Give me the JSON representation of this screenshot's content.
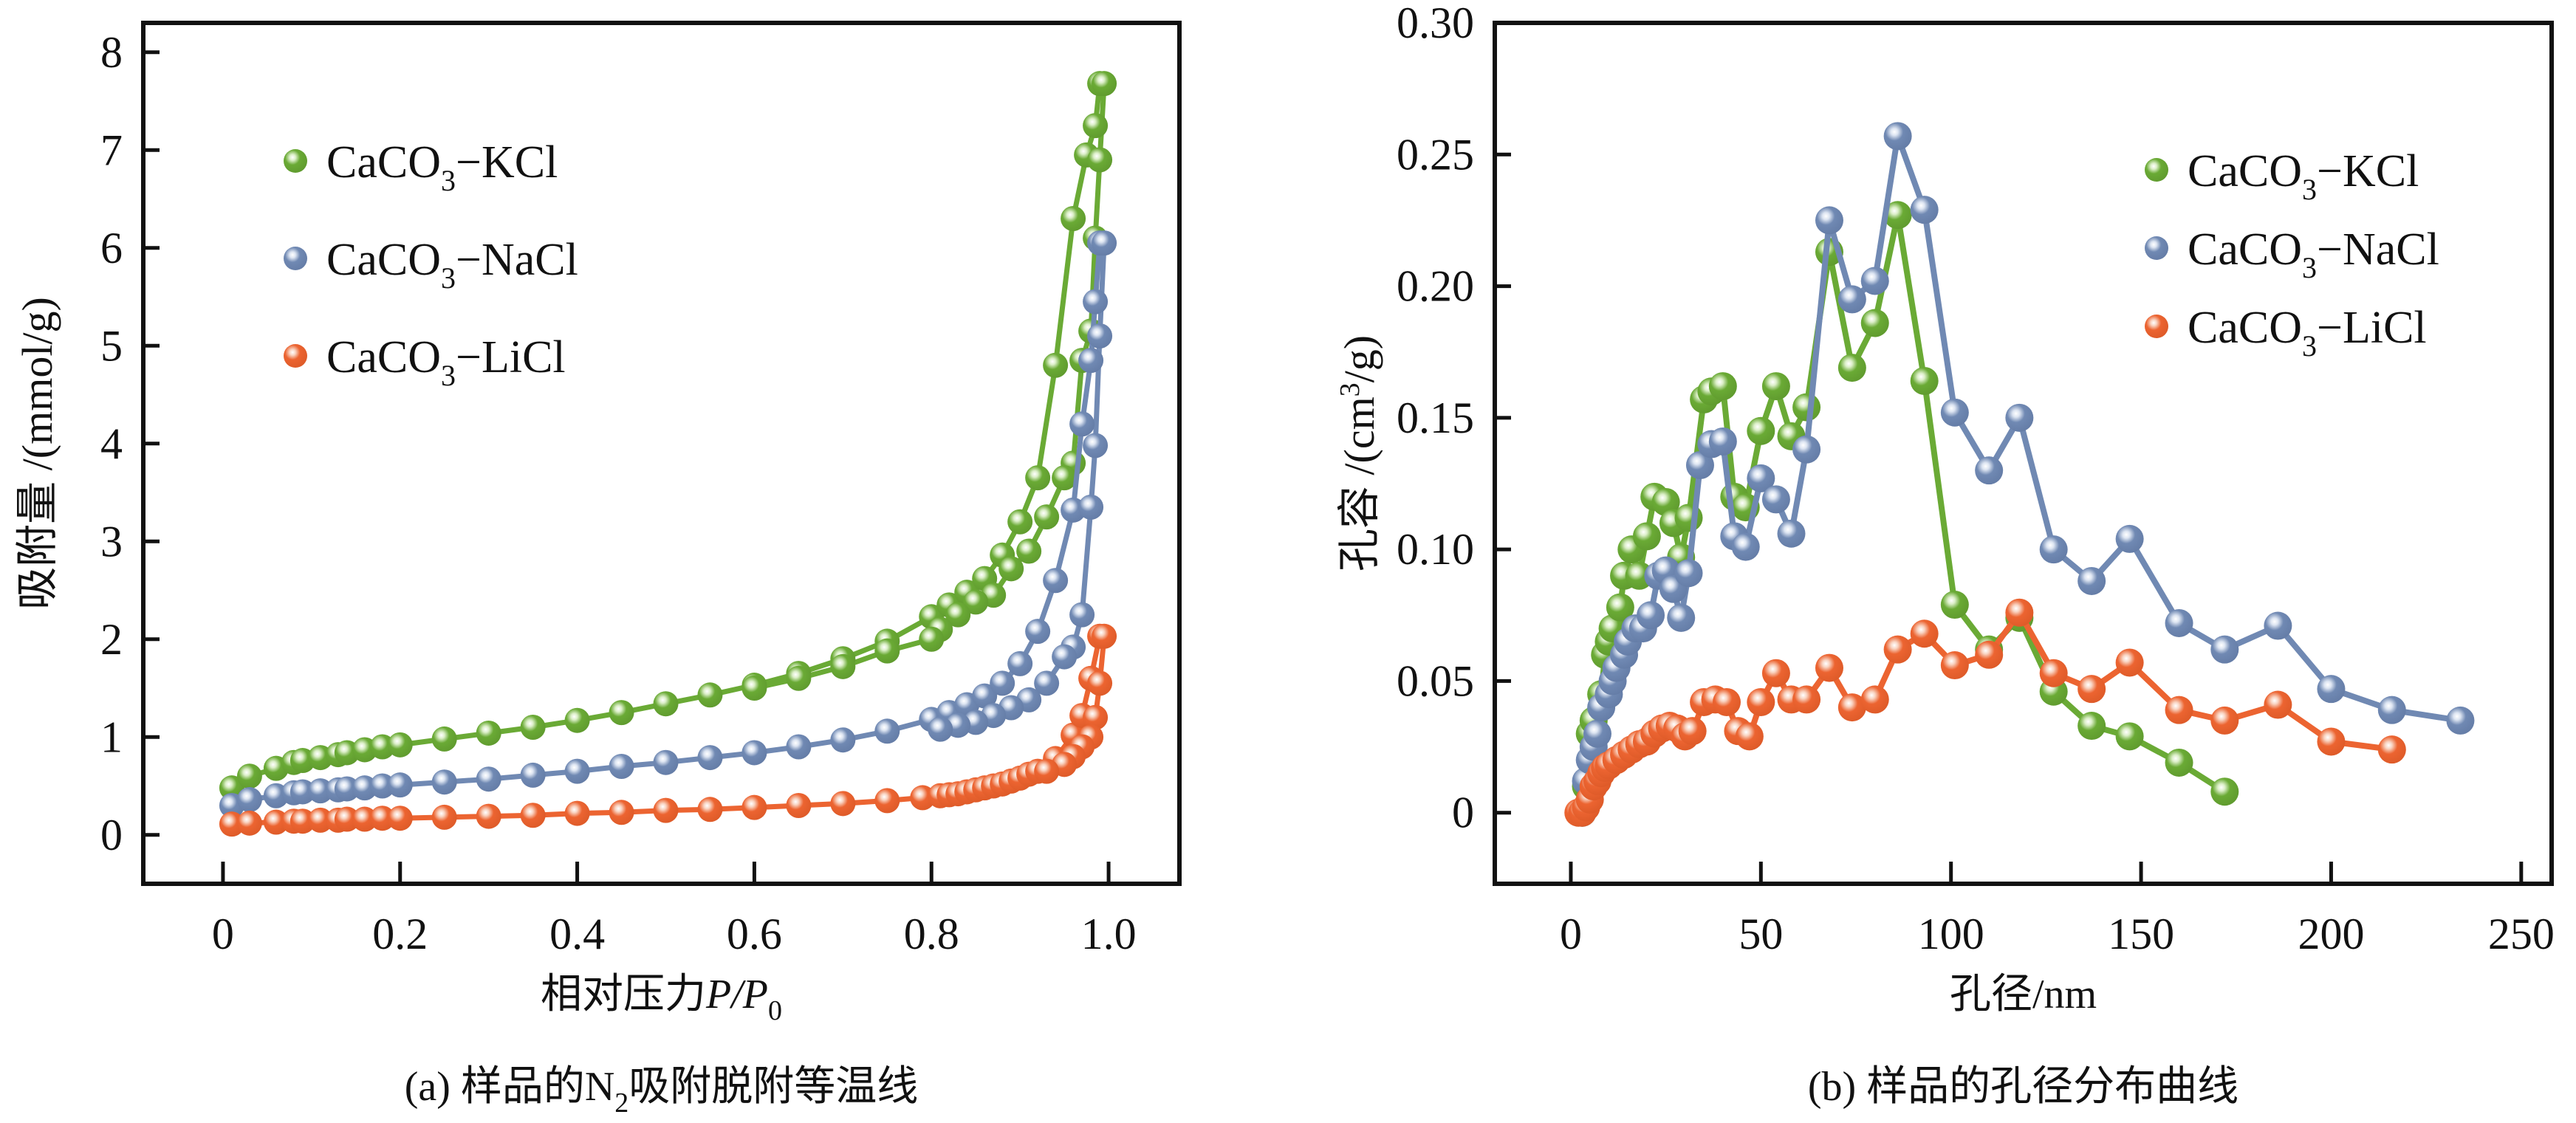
{
  "chart_data": [
    {
      "id": "a",
      "type": "line",
      "title": "",
      "caption": {
        "prefix": "(a) 样品的N",
        "sub": "2",
        "suffix": "吸附脱附等温线"
      },
      "xlabel": {
        "text": "相对压力",
        "italic": "P/P",
        "sub": "0"
      },
      "ylabel": "吸附量 /(mmol/g)",
      "xlim": [
        -0.09,
        1.08
      ],
      "ylim": [
        -0.5,
        8.3
      ],
      "xticks": [
        0,
        0.2,
        0.4,
        0.6,
        0.8,
        1.0
      ],
      "xtick_labels": [
        "0",
        "0.2",
        "0.4",
        "0.6",
        "0.8",
        "1.0"
      ],
      "yticks": [
        0,
        1,
        2,
        3,
        4,
        5,
        6,
        7,
        8
      ],
      "ytick_labels": [
        "0",
        "1",
        "2",
        "3",
        "4",
        "5",
        "6",
        "7",
        "8"
      ],
      "grid": false,
      "legend_position": "top-left",
      "series": [
        {
          "name": "CaCO3-KCl",
          "label_main": "CaCO",
          "label_sub": "3",
          "label_tail": "−KCl",
          "color": "#6aaa35",
          "x": [
            0.01,
            0.03,
            0.06,
            0.08,
            0.09,
            0.11,
            0.13,
            0.14,
            0.16,
            0.18,
            0.2,
            0.25,
            0.3,
            0.35,
            0.4,
            0.45,
            0.5,
            0.55,
            0.6,
            0.65,
            0.7,
            0.75,
            0.8,
            0.82,
            0.84,
            0.86,
            0.88,
            0.9,
            0.92,
            0.94,
            0.96,
            0.975,
            0.985,
            0.99,
            0.995,
            0.99,
            0.985,
            0.98,
            0.97,
            0.96,
            0.95,
            0.93,
            0.91,
            0.89,
            0.87,
            0.85,
            0.83,
            0.81,
            0.8,
            0.75,
            0.7,
            0.65,
            0.6
          ],
          "y": [
            0.48,
            0.6,
            0.68,
            0.74,
            0.76,
            0.79,
            0.82,
            0.84,
            0.87,
            0.9,
            0.92,
            0.98,
            1.04,
            1.1,
            1.17,
            1.25,
            1.34,
            1.43,
            1.53,
            1.65,
            1.8,
            1.98,
            2.23,
            2.35,
            2.48,
            2.62,
            2.86,
            3.2,
            3.65,
            4.8,
            6.3,
            6.95,
            7.25,
            7.68,
            7.68,
            6.9,
            6.1,
            5.15,
            4.85,
            3.8,
            3.65,
            3.25,
            2.9,
            2.72,
            2.45,
            2.38,
            2.25,
            2.1,
            2.0,
            1.88,
            1.72,
            1.6,
            1.5
          ]
        },
        {
          "name": "CaCO3-NaCl",
          "label_main": "CaCO",
          "label_sub": "3",
          "label_tail": "−NaCl",
          "color": "#7089b3",
          "x": [
            0.01,
            0.03,
            0.06,
            0.08,
            0.09,
            0.11,
            0.13,
            0.14,
            0.16,
            0.18,
            0.2,
            0.25,
            0.3,
            0.35,
            0.4,
            0.45,
            0.5,
            0.55,
            0.6,
            0.65,
            0.7,
            0.75,
            0.8,
            0.82,
            0.84,
            0.86,
            0.88,
            0.9,
            0.92,
            0.94,
            0.96,
            0.97,
            0.98,
            0.985,
            0.99,
            0.995,
            0.99,
            0.985,
            0.98,
            0.97,
            0.96,
            0.95,
            0.93,
            0.91,
            0.89,
            0.87,
            0.85,
            0.83,
            0.81
          ],
          "y": [
            0.3,
            0.36,
            0.4,
            0.43,
            0.44,
            0.45,
            0.46,
            0.47,
            0.48,
            0.5,
            0.51,
            0.54,
            0.57,
            0.61,
            0.65,
            0.7,
            0.74,
            0.79,
            0.84,
            0.9,
            0.97,
            1.06,
            1.18,
            1.25,
            1.33,
            1.42,
            1.55,
            1.75,
            2.08,
            2.6,
            3.32,
            4.2,
            4.85,
            5.45,
            6.05,
            6.05,
            5.1,
            3.98,
            3.35,
            2.25,
            1.92,
            1.82,
            1.55,
            1.38,
            1.3,
            1.22,
            1.15,
            1.12,
            1.08
          ]
        },
        {
          "name": "CaCO3-LiCl",
          "label_main": "CaCO",
          "label_sub": "3",
          "label_tail": "−LiCl",
          "color": "#ec6431",
          "x": [
            0.01,
            0.03,
            0.06,
            0.08,
            0.09,
            0.11,
            0.13,
            0.14,
            0.16,
            0.18,
            0.2,
            0.25,
            0.3,
            0.35,
            0.4,
            0.45,
            0.5,
            0.55,
            0.6,
            0.65,
            0.7,
            0.75,
            0.79,
            0.81,
            0.82,
            0.83,
            0.84,
            0.85,
            0.86,
            0.87,
            0.88,
            0.89,
            0.9,
            0.91,
            0.92,
            0.94,
            0.96,
            0.97,
            0.98,
            0.99,
            0.995,
            0.99,
            0.985,
            0.98,
            0.97,
            0.96,
            0.95,
            0.93
          ],
          "y": [
            0.11,
            0.12,
            0.13,
            0.14,
            0.14,
            0.15,
            0.15,
            0.16,
            0.16,
            0.17,
            0.17,
            0.18,
            0.19,
            0.2,
            0.22,
            0.23,
            0.25,
            0.26,
            0.28,
            0.3,
            0.32,
            0.35,
            0.38,
            0.4,
            0.41,
            0.42,
            0.44,
            0.46,
            0.48,
            0.5,
            0.52,
            0.55,
            0.58,
            0.62,
            0.65,
            0.78,
            1.02,
            1.22,
            1.6,
            2.03,
            2.03,
            1.55,
            1.2,
            1.0,
            0.9,
            0.8,
            0.72,
            0.65
          ]
        }
      ]
    },
    {
      "id": "b",
      "type": "line",
      "title": "",
      "caption": {
        "prefix": "(b) 样品的孔径分布曲线",
        "sub": "",
        "suffix": ""
      },
      "xlabel": {
        "text": "孔径/nm",
        "italic": "",
        "sub": ""
      },
      "ylabel_main": "孔容 /(cm",
      "ylabel_sup": "3",
      "ylabel_tail": "/g)",
      "xlim": [
        -20,
        258
      ],
      "ylim": [
        -0.027,
        0.3
      ],
      "xticks": [
        0,
        50,
        100,
        150,
        200,
        250
      ],
      "xtick_labels": [
        "0",
        "50",
        "100",
        "150",
        "200",
        "250"
      ],
      "yticks": [
        0,
        0.05,
        0.1,
        0.15,
        0.2,
        0.25,
        0.3
      ],
      "ytick_labels": [
        "0",
        "0.05",
        "0.10",
        "0.15",
        "0.20",
        "0.25",
        "0.30"
      ],
      "grid": false,
      "legend_position": "top-right",
      "series": [
        {
          "name": "CaCO3-KCl",
          "label_main": "CaCO",
          "label_sub": "3",
          "label_tail": "−KCl",
          "color": "#6aaa35",
          "x": [
            3,
            4,
            5,
            6,
            8,
            9,
            10,
            11,
            13,
            14,
            16,
            18,
            20,
            22,
            25,
            27,
            29,
            31,
            35,
            37,
            40,
            43,
            46,
            50,
            54,
            58,
            62,
            68,
            74,
            80,
            86,
            93,
            101,
            110,
            118,
            127,
            137,
            147,
            160,
            172
          ],
          "y": [
            0.0,
            0.01,
            0.03,
            0.035,
            0.045,
            0.06,
            0.065,
            0.07,
            0.078,
            0.09,
            0.1,
            0.09,
            0.105,
            0.12,
            0.118,
            0.11,
            0.097,
            0.112,
            0.157,
            0.16,
            0.162,
            0.12,
            0.116,
            0.145,
            0.162,
            0.143,
            0.154,
            0.213,
            0.169,
            0.186,
            0.227,
            0.164,
            0.079,
            0.062,
            0.074,
            0.046,
            0.033,
            0.029,
            0.019,
            0.008
          ]
        },
        {
          "name": "CaCO3-NaCl",
          "label_main": "CaCO",
          "label_sub": "3",
          "label_tail": "−NaCl",
          "color": "#7089b3",
          "x": [
            3,
            4,
            5,
            6,
            7,
            8,
            10,
            11,
            12,
            14,
            15,
            17,
            19,
            21,
            23,
            25,
            27,
            29,
            31,
            34,
            37,
            40,
            43,
            46,
            50,
            54,
            58,
            62,
            68,
            74,
            80,
            86,
            93,
            101,
            110,
            118,
            127,
            137,
            147,
            160,
            172,
            186,
            200,
            216,
            234
          ],
          "y": [
            0.0,
            0.012,
            0.02,
            0.025,
            0.03,
            0.04,
            0.045,
            0.05,
            0.055,
            0.06,
            0.065,
            0.07,
            0.07,
            0.075,
            0.09,
            0.092,
            0.085,
            0.074,
            0.091,
            0.132,
            0.14,
            0.141,
            0.105,
            0.101,
            0.127,
            0.119,
            0.106,
            0.138,
            0.225,
            0.195,
            0.202,
            0.257,
            0.229,
            0.152,
            0.13,
            0.15,
            0.1,
            0.088,
            0.104,
            0.072,
            0.062,
            0.071,
            0.047,
            0.039,
            0.035
          ]
        },
        {
          "name": "CaCO3-LiCl",
          "label_main": "CaCO",
          "label_sub": "3",
          "label_tail": "−LiCl",
          "color": "#ec6431",
          "x": [
            2,
            3,
            4,
            5,
            6,
            7,
            8,
            9,
            10,
            12,
            14,
            16,
            18,
            20,
            22,
            24,
            26,
            28,
            30,
            32,
            35,
            38,
            41,
            44,
            47,
            50,
            54,
            58,
            62,
            68,
            74,
            80,
            86,
            93,
            101,
            110,
            118,
            127,
            137,
            147,
            160,
            172,
            186,
            200,
            216
          ],
          "y": [
            0.0,
            0.0,
            0.002,
            0.005,
            0.01,
            0.012,
            0.015,
            0.017,
            0.018,
            0.02,
            0.022,
            0.024,
            0.026,
            0.027,
            0.03,
            0.032,
            0.033,
            0.032,
            0.029,
            0.031,
            0.042,
            0.043,
            0.042,
            0.031,
            0.029,
            0.042,
            0.053,
            0.043,
            0.043,
            0.055,
            0.04,
            0.043,
            0.062,
            0.068,
            0.056,
            0.06,
            0.076,
            0.053,
            0.047,
            0.057,
            0.039,
            0.035,
            0.041,
            0.027,
            0.024
          ]
        }
      ]
    }
  ]
}
